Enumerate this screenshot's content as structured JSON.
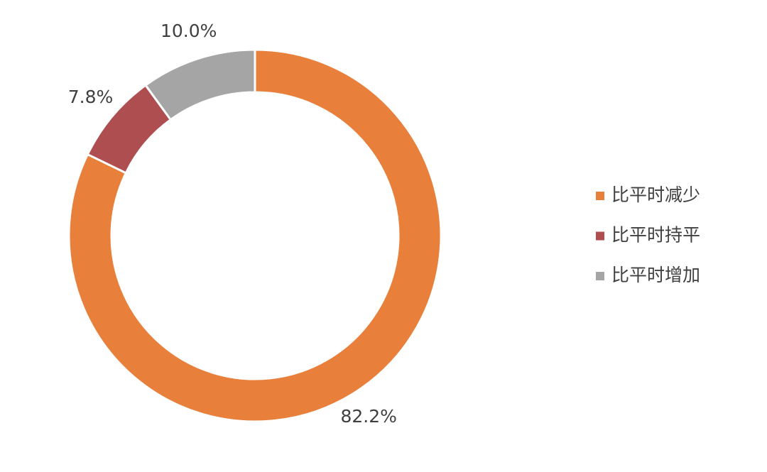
{
  "chart_data": {
    "type": "donut",
    "categories": [
      "比平时减少",
      "比平时持平",
      "比平时增加"
    ],
    "values": [
      82.2,
      7.8,
      10.0
    ],
    "value_labels": [
      "82.2%",
      "7.8%",
      "10.0%"
    ],
    "colors": [
      "#e8803c",
      "#ae4e50",
      "#a5a5a5"
    ],
    "legend": "right"
  }
}
